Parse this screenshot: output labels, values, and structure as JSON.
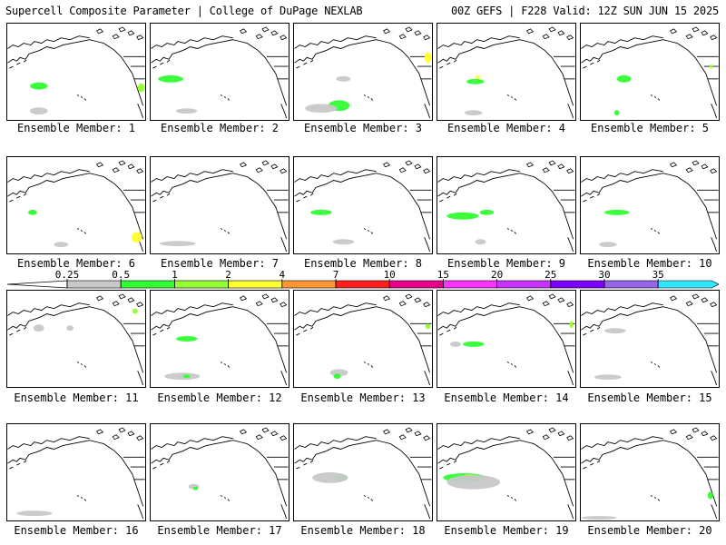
{
  "header": {
    "title": "Supercell Composite Parameter | College of DuPage NEXLAB",
    "run_info": "00Z GEFS | F228 Valid: 12Z SUN JUN 15 2025"
  },
  "colorbar": {
    "labels": [
      "0.25",
      "0.5",
      "1",
      "2",
      "4",
      "7",
      "10",
      "15",
      "20",
      "25",
      "30",
      "35"
    ],
    "colors": [
      "#c8c8c8",
      "#32ff32",
      "#96ff32",
      "#ffff32",
      "#ff9632",
      "#ff1e1e",
      "#e6008c",
      "#ff32ff",
      "#c832ff",
      "#7d00ff",
      "#9664e6",
      "#32e6ff"
    ]
  },
  "members": [
    {
      "caption": "Ensemble Member: 1"
    },
    {
      "caption": "Ensemble Member: 2"
    },
    {
      "caption": "Ensemble Member: 3"
    },
    {
      "caption": "Ensemble Member: 4"
    },
    {
      "caption": "Ensemble Member: 5"
    },
    {
      "caption": "Ensemble Member: 6"
    },
    {
      "caption": "Ensemble Member: 7"
    },
    {
      "caption": "Ensemble Member: 8"
    },
    {
      "caption": "Ensemble Member: 9"
    },
    {
      "caption": "Ensemble Member: 10"
    },
    {
      "caption": "Ensemble Member: 11"
    },
    {
      "caption": "Ensemble Member: 12"
    },
    {
      "caption": "Ensemble Member: 13"
    },
    {
      "caption": "Ensemble Member: 14"
    },
    {
      "caption": "Ensemble Member: 15"
    },
    {
      "caption": "Ensemble Member: 16"
    },
    {
      "caption": "Ensemble Member: 17"
    },
    {
      "caption": "Ensemble Member: 18"
    },
    {
      "caption": "Ensemble Member: 19"
    },
    {
      "caption": "Ensemble Member: 20"
    }
  ]
}
